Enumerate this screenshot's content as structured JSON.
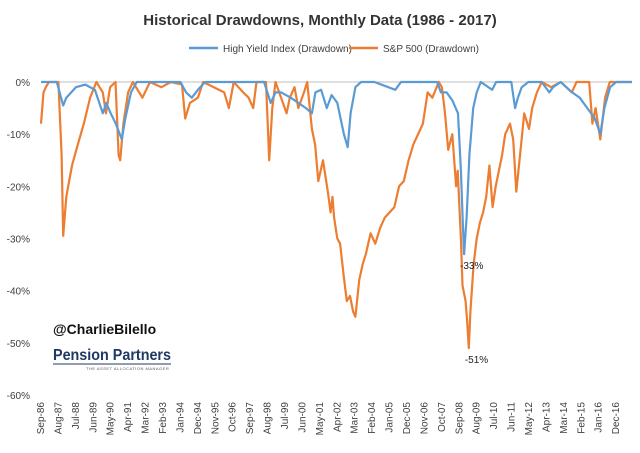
{
  "chart_data": {
    "type": "line",
    "title": "Historical Drawdowns, Monthly Data (1986 - 2017)",
    "xlabel": "",
    "ylabel": "",
    "ylim": [
      -60,
      0
    ],
    "yticks": [
      0,
      -10,
      -20,
      -30,
      -40,
      -50,
      -60
    ],
    "ytick_labels": [
      "0%",
      "-10%",
      "-20%",
      "-30%",
      "-40%",
      "-50%",
      "-60%"
    ],
    "xticks": [
      {
        "label": "Sep-86",
        "t": 1986.667
      },
      {
        "label": "Aug-87",
        "t": 1987.583
      },
      {
        "label": "Jul-88",
        "t": 1988.5
      },
      {
        "label": "Jun-89",
        "t": 1989.417
      },
      {
        "label": "May-90",
        "t": 1990.333
      },
      {
        "label": "Apr-91",
        "t": 1991.25
      },
      {
        "label": "Mar-92",
        "t": 1992.167
      },
      {
        "label": "Feb-93",
        "t": 1993.083
      },
      {
        "label": "Jan-94",
        "t": 1994.0
      },
      {
        "label": "Dec-94",
        "t": 1994.917
      },
      {
        "label": "Nov-95",
        "t": 1995.833
      },
      {
        "label": "Oct-96",
        "t": 1996.75
      },
      {
        "label": "Sep-97",
        "t": 1997.667
      },
      {
        "label": "Aug-98",
        "t": 1998.583
      },
      {
        "label": "Jul-99",
        "t": 1999.5
      },
      {
        "label": "Jun-00",
        "t": 2000.417
      },
      {
        "label": "May-01",
        "t": 2001.333
      },
      {
        "label": "Apr-02",
        "t": 2002.25
      },
      {
        "label": "Mar-03",
        "t": 2003.167
      },
      {
        "label": "Feb-04",
        "t": 2004.083
      },
      {
        "label": "Jan-05",
        "t": 2005.0
      },
      {
        "label": "Dec-05",
        "t": 2005.917
      },
      {
        "label": "Nov-06",
        "t": 2006.833
      },
      {
        "label": "Oct-07",
        "t": 2007.75
      },
      {
        "label": "Sep-08",
        "t": 2008.667
      },
      {
        "label": "Aug-09",
        "t": 2009.583
      },
      {
        "label": "Jul-10",
        "t": 2010.5
      },
      {
        "label": "Jun-11",
        "t": 2011.417
      },
      {
        "label": "May-12",
        "t": 2012.333
      },
      {
        "label": "Apr-13",
        "t": 2013.25
      },
      {
        "label": "Mar-14",
        "t": 2014.167
      },
      {
        "label": "Feb-15",
        "t": 2015.083
      },
      {
        "label": "Jan-16",
        "t": 2016.0
      },
      {
        "label": "Dec-16",
        "t": 2016.917
      }
    ],
    "x_range": [
      1986.667,
      2017.75
    ],
    "legend_position": "top",
    "series": [
      {
        "name": "High Yield Index (Drawdown)",
        "color": "#5b9bd5",
        "points": [
          [
            1986.667,
            0
          ],
          [
            1987.0,
            0
          ],
          [
            1987.5,
            0
          ],
          [
            1987.833,
            -4.5
          ],
          [
            1988.0,
            -3
          ],
          [
            1988.5,
            -1
          ],
          [
            1989.0,
            -0.5
          ],
          [
            1989.5,
            -1.5
          ],
          [
            1989.917,
            -6
          ],
          [
            1990.1,
            -4
          ],
          [
            1990.333,
            -6
          ],
          [
            1990.6,
            -8
          ],
          [
            1990.917,
            -11
          ],
          [
            1991.1,
            -7
          ],
          [
            1991.4,
            -2
          ],
          [
            1991.7,
            0
          ],
          [
            1992.5,
            0
          ],
          [
            1993.5,
            0
          ],
          [
            1994.0,
            0
          ],
          [
            1994.3,
            -2
          ],
          [
            1994.6,
            -3
          ],
          [
            1994.917,
            -1.5
          ],
          [
            1995.3,
            0
          ],
          [
            1996.5,
            0
          ],
          [
            1997.5,
            0
          ],
          [
            1998.4,
            0
          ],
          [
            1998.75,
            -4
          ],
          [
            1999.0,
            -2
          ],
          [
            1999.3,
            -2
          ],
          [
            1999.8,
            -3
          ],
          [
            2000.2,
            -4
          ],
          [
            2000.6,
            -5
          ],
          [
            2000.917,
            -6
          ],
          [
            2001.1,
            -2
          ],
          [
            2001.4,
            -1.5
          ],
          [
            2001.7,
            -5
          ],
          [
            2001.95,
            -2.5
          ],
          [
            2002.25,
            -4
          ],
          [
            2002.6,
            -10
          ],
          [
            2002.8,
            -12.5
          ],
          [
            2002.95,
            -6
          ],
          [
            2003.2,
            -1
          ],
          [
            2003.5,
            0
          ],
          [
            2004.2,
            0
          ],
          [
            2005.3,
            -1.5
          ],
          [
            2005.6,
            0
          ],
          [
            2006.5,
            0
          ],
          [
            2007.5,
            0
          ],
          [
            2007.7,
            -2
          ],
          [
            2008.0,
            -2
          ],
          [
            2008.3,
            -3.5
          ],
          [
            2008.6,
            -6
          ],
          [
            2008.75,
            -17
          ],
          [
            2008.85,
            -27
          ],
          [
            2008.917,
            -33
          ],
          [
            2009.05,
            -26
          ],
          [
            2009.2,
            -14
          ],
          [
            2009.4,
            -5
          ],
          [
            2009.583,
            -2
          ],
          [
            2009.8,
            0
          ],
          [
            2010.4,
            -1.5
          ],
          [
            2010.6,
            0
          ],
          [
            2011.4,
            0
          ],
          [
            2011.6,
            -5
          ],
          [
            2011.75,
            -3
          ],
          [
            2011.95,
            -1
          ],
          [
            2012.3,
            0
          ],
          [
            2013.0,
            0
          ],
          [
            2013.4,
            -2
          ],
          [
            2013.6,
            -1
          ],
          [
            2014.0,
            0
          ],
          [
            2014.6,
            -2
          ],
          [
            2015.0,
            -3
          ],
          [
            2015.4,
            -5
          ],
          [
            2015.8,
            -7
          ],
          [
            2016.083,
            -10
          ],
          [
            2016.3,
            -5
          ],
          [
            2016.6,
            -1
          ],
          [
            2016.917,
            0
          ],
          [
            2017.75,
            0
          ]
        ]
      },
      {
        "name": "S&P 500 (Drawdown)",
        "color": "#ed7d31",
        "points": [
          [
            1986.667,
            -8
          ],
          [
            1986.8,
            -2
          ],
          [
            1986.917,
            -1
          ],
          [
            1987.083,
            0
          ],
          [
            1987.583,
            0
          ],
          [
            1987.75,
            -14
          ],
          [
            1987.833,
            -29.5
          ],
          [
            1988.0,
            -22
          ],
          [
            1988.3,
            -16
          ],
          [
            1988.6,
            -12
          ],
          [
            1988.917,
            -8
          ],
          [
            1989.25,
            -3
          ],
          [
            1989.583,
            0
          ],
          [
            1989.917,
            -2
          ],
          [
            1990.083,
            -6
          ],
          [
            1990.3,
            -1
          ],
          [
            1990.583,
            0
          ],
          [
            1990.75,
            -14
          ],
          [
            1990.833,
            -15
          ],
          [
            1991.0,
            -8
          ],
          [
            1991.25,
            -2
          ],
          [
            1991.5,
            0
          ],
          [
            1992.0,
            -3
          ],
          [
            1992.4,
            0
          ],
          [
            1993.0,
            -1
          ],
          [
            1993.5,
            0
          ],
          [
            1994.083,
            -0.5
          ],
          [
            1994.25,
            -7
          ],
          [
            1994.5,
            -4
          ],
          [
            1994.917,
            -3
          ],
          [
            1995.2,
            0
          ],
          [
            1996.3,
            -2
          ],
          [
            1996.55,
            -5
          ],
          [
            1996.8,
            0
          ],
          [
            1997.3,
            -2
          ],
          [
            1997.583,
            -3
          ],
          [
            1997.83,
            -5
          ],
          [
            1998.0,
            0
          ],
          [
            1998.5,
            0
          ],
          [
            1998.67,
            -15
          ],
          [
            1998.83,
            -5
          ],
          [
            1999.0,
            0
          ],
          [
            1999.583,
            -6
          ],
          [
            1999.75,
            -3
          ],
          [
            2000.0,
            -1
          ],
          [
            2000.2,
            -5
          ],
          [
            2000.5,
            -2
          ],
          [
            2000.67,
            0
          ],
          [
            2000.917,
            -9
          ],
          [
            2001.083,
            -12
          ],
          [
            2001.25,
            -19
          ],
          [
            2001.5,
            -15
          ],
          [
            2001.75,
            -21
          ],
          [
            2001.9,
            -25
          ],
          [
            2002.0,
            -22
          ],
          [
            2002.083,
            -26
          ],
          [
            2002.25,
            -30
          ],
          [
            2002.4,
            -31
          ],
          [
            2002.583,
            -37
          ],
          [
            2002.75,
            -42
          ],
          [
            2002.917,
            -41
          ],
          [
            2003.083,
            -44
          ],
          [
            2003.2,
            -45
          ],
          [
            2003.4,
            -38
          ],
          [
            2003.583,
            -35
          ],
          [
            2003.75,
            -33
          ],
          [
            2004.0,
            -29
          ],
          [
            2004.25,
            -31
          ],
          [
            2004.5,
            -28
          ],
          [
            2004.75,
            -26
          ],
          [
            2005.0,
            -25
          ],
          [
            2005.25,
            -24
          ],
          [
            2005.5,
            -20
          ],
          [
            2005.75,
            -19
          ],
          [
            2006.0,
            -15
          ],
          [
            2006.25,
            -12
          ],
          [
            2006.5,
            -10
          ],
          [
            2006.75,
            -8
          ],
          [
            2007.0,
            -2
          ],
          [
            2007.25,
            -3
          ],
          [
            2007.583,
            0
          ],
          [
            2007.75,
            -1
          ],
          [
            2007.917,
            -6
          ],
          [
            2008.083,
            -13
          ],
          [
            2008.3,
            -10
          ],
          [
            2008.5,
            -20
          ],
          [
            2008.583,
            -17
          ],
          [
            2008.75,
            -30
          ],
          [
            2008.833,
            -39
          ],
          [
            2009.0,
            -42
          ],
          [
            2009.083,
            -46
          ],
          [
            2009.167,
            -51
          ],
          [
            2009.25,
            -44
          ],
          [
            2009.417,
            -35
          ],
          [
            2009.583,
            -30
          ],
          [
            2009.75,
            -27
          ],
          [
            2009.917,
            -25
          ],
          [
            2010.083,
            -22
          ],
          [
            2010.25,
            -16
          ],
          [
            2010.417,
            -24
          ],
          [
            2010.583,
            -20
          ],
          [
            2010.75,
            -17
          ],
          [
            2010.917,
            -14
          ],
          [
            2011.083,
            -10
          ],
          [
            2011.333,
            -8
          ],
          [
            2011.5,
            -11
          ],
          [
            2011.667,
            -21
          ],
          [
            2011.75,
            -18
          ],
          [
            2011.917,
            -12
          ],
          [
            2012.083,
            -6
          ],
          [
            2012.333,
            -9
          ],
          [
            2012.5,
            -5
          ],
          [
            2012.75,
            -2
          ],
          [
            2013.0,
            0
          ],
          [
            2013.5,
            -1
          ],
          [
            2014.0,
            0
          ],
          [
            2014.583,
            -2
          ],
          [
            2014.833,
            0
          ],
          [
            2015.5,
            0
          ],
          [
            2015.667,
            -8
          ],
          [
            2015.833,
            -5
          ],
          [
            2016.083,
            -11
          ],
          [
            2016.333,
            -3
          ],
          [
            2016.583,
            0
          ],
          [
            2017.75,
            0
          ]
        ]
      }
    ],
    "annotations": [
      {
        "text": "-33%",
        "x": 2008.917,
        "y": -33
      },
      {
        "text": "-51%",
        "x": 2009.167,
        "y": -51
      }
    ]
  },
  "watermark": {
    "handle": "@CharlieBilello",
    "brand": "Pension Partners",
    "tagline": "THE ASSET ALLOCATION MANAGER"
  }
}
